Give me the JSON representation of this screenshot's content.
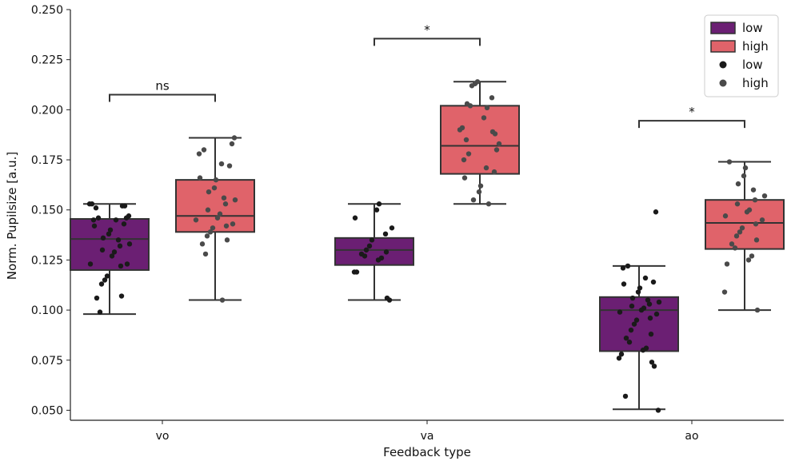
{
  "chart_data": {
    "type": "box",
    "xlabel": "Feedback type",
    "ylabel": "Norm. Pupilsize [a.u.]",
    "categories": [
      "vo",
      "va",
      "ao"
    ],
    "ylim": [
      0.045,
      0.25
    ],
    "yticks": [
      0.05,
      0.075,
      0.1,
      0.125,
      0.15,
      0.175,
      0.2,
      0.225,
      0.25
    ],
    "ytick_labels": [
      "0.050",
      "0.075",
      "0.100",
      "0.125",
      "0.150",
      "0.175",
      "0.200",
      "0.225",
      "0.250"
    ],
    "grid": false,
    "legend_position": "top-right",
    "legend": {
      "boxes": [
        {
          "label": "low",
          "color": "#6b1f73"
        },
        {
          "label": "high",
          "color": "#e0636a"
        }
      ],
      "points": [
        {
          "label": "low",
          "color": "#1a1a1a"
        },
        {
          "label": "high",
          "color": "#4a4a4a"
        }
      ]
    },
    "series": [
      {
        "name": "low",
        "color": "#6b1f73",
        "point_color": "#1a1a1a",
        "boxes": [
          {
            "category": "vo",
            "whisker_low": 0.098,
            "q1": 0.12,
            "median": 0.1355,
            "q3": 0.1455,
            "whisker_high": 0.153,
            "points": [
              0.153,
              0.153,
              0.152,
              0.152,
              0.151,
              0.147,
              0.146,
              0.146,
              0.145,
              0.145,
              0.143,
              0.142,
              0.14,
              0.138,
              0.136,
              0.135,
              0.133,
              0.132,
              0.13,
              0.129,
              0.127,
              0.123,
              0.123,
              0.122,
              0.117,
              0.115,
              0.113,
              0.107,
              0.106,
              0.099
            ]
          },
          {
            "category": "va",
            "whisker_low": 0.105,
            "q1": 0.1225,
            "median": 0.13,
            "q3": 0.136,
            "whisker_high": 0.153,
            "points": [
              0.153,
              0.15,
              0.146,
              0.141,
              0.138,
              0.135,
              0.132,
              0.13,
              0.129,
              0.128,
              0.127,
              0.126,
              0.125,
              0.119,
              0.119,
              0.106,
              0.105
            ]
          },
          {
            "category": "ao",
            "whisker_low": 0.0505,
            "q1": 0.0795,
            "median": 0.1,
            "q3": 0.1065,
            "whisker_high": 0.122,
            "points": [
              0.149,
              0.122,
              0.121,
              0.116,
              0.114,
              0.113,
              0.111,
              0.109,
              0.106,
              0.105,
              0.104,
              0.103,
              0.102,
              0.101,
              0.1,
              0.099,
              0.098,
              0.096,
              0.095,
              0.093,
              0.09,
              0.088,
              0.086,
              0.084,
              0.081,
              0.08,
              0.078,
              0.076,
              0.074,
              0.072,
              0.057,
              0.05
            ]
          }
        ]
      },
      {
        "name": "high",
        "color": "#e0636a",
        "point_color": "#4a4a4a",
        "boxes": [
          {
            "category": "vo",
            "whisker_low": 0.105,
            "q1": 0.139,
            "median": 0.147,
            "q3": 0.165,
            "whisker_high": 0.186,
            "points": [
              0.186,
              0.183,
              0.18,
              0.178,
              0.173,
              0.172,
              0.166,
              0.165,
              0.161,
              0.159,
              0.156,
              0.155,
              0.153,
              0.15,
              0.148,
              0.146,
              0.145,
              0.143,
              0.142,
              0.141,
              0.139,
              0.137,
              0.135,
              0.133,
              0.128,
              0.105
            ]
          },
          {
            "category": "va",
            "whisker_low": 0.153,
            "q1": 0.168,
            "median": 0.182,
            "q3": 0.202,
            "whisker_high": 0.214,
            "points": [
              0.214,
              0.213,
              0.212,
              0.206,
              0.203,
              0.202,
              0.201,
              0.196,
              0.191,
              0.19,
              0.189,
              0.188,
              0.185,
              0.183,
              0.18,
              0.178,
              0.175,
              0.171,
              0.169,
              0.166,
              0.162,
              0.159,
              0.155,
              0.153
            ]
          },
          {
            "category": "ao",
            "whisker_low": 0.1,
            "q1": 0.1305,
            "median": 0.1435,
            "q3": 0.155,
            "whisker_high": 0.174,
            "points": [
              0.174,
              0.171,
              0.167,
              0.163,
              0.16,
              0.157,
              0.155,
              0.153,
              0.15,
              0.149,
              0.147,
              0.145,
              0.143,
              0.141,
              0.139,
              0.137,
              0.135,
              0.133,
              0.131,
              0.127,
              0.125,
              0.123,
              0.109,
              0.1
            ]
          }
        ]
      }
    ],
    "significance": [
      {
        "category": "vo",
        "label": "ns",
        "y": 0.2075
      },
      {
        "category": "va",
        "label": "*",
        "y": 0.2355
      },
      {
        "category": "ao",
        "label": "*",
        "y": 0.1945
      }
    ]
  }
}
